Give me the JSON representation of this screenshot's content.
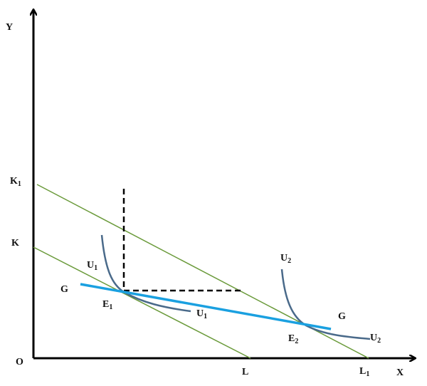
{
  "diagram": {
    "axes": {
      "y": "Y",
      "x": "X",
      "origin": "O"
    },
    "budget_lines": [
      {
        "intercept_y": {
          "text": "K",
          "sub": "1"
        },
        "intercept_x": {
          "text": "L",
          "sub": "1"
        }
      },
      {
        "intercept_y": {
          "text": "K"
        },
        "intercept_x": {
          "text": "L"
        }
      }
    ],
    "expansion_path": {
      "label": "G"
    },
    "indifference_curves": [
      {
        "text": "U",
        "sub": "1"
      },
      {
        "text": "U",
        "sub": "2"
      }
    ],
    "equilibria": [
      {
        "text": "E",
        "sub": "1"
      },
      {
        "text": "E",
        "sub": "2"
      }
    ]
  }
}
